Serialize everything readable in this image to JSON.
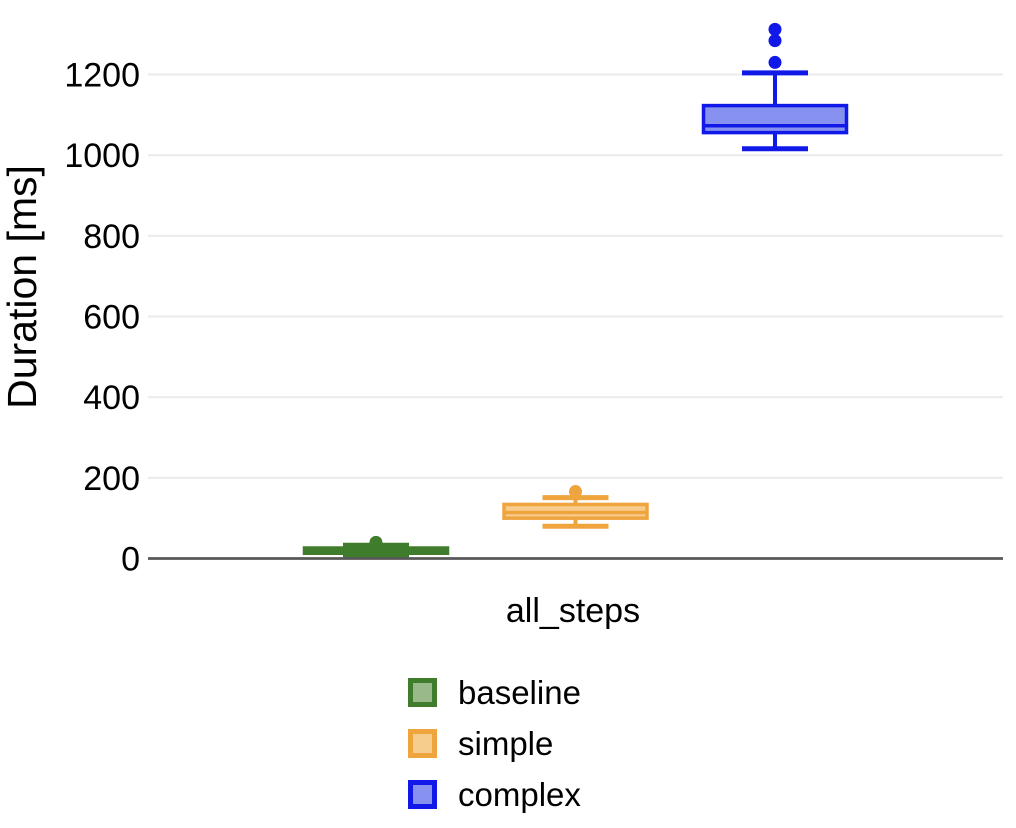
{
  "chart_data": {
    "type": "box",
    "title": "",
    "ylabel": "Duration [ms]",
    "xlabel": "",
    "categories": [
      "all_steps"
    ],
    "yticks": [
      0,
      200,
      400,
      600,
      800,
      1000,
      1200
    ],
    "ylim": [
      0,
      1360
    ],
    "grid": true,
    "legend_position": "bottom-center",
    "colors": {
      "grid_line": "#ececec",
      "axis_line": "#58585a",
      "text": "#000000",
      "background": "#ffffff"
    },
    "series": [
      {
        "name": "baseline",
        "color": "#3f7d2c",
        "fill": "#9ab98b",
        "whisker_low": 6,
        "q1": 13,
        "median": 18,
        "q3": 26,
        "whisker_high": 33,
        "outliers": [
          40
        ]
      },
      {
        "name": "simple",
        "color": "#f0a43e",
        "fill": "#f7cd8d",
        "whisker_low": 80,
        "q1": 100,
        "median": 114,
        "q3": 134,
        "whisker_high": 151,
        "outliers": [
          166
        ]
      },
      {
        "name": "complex",
        "color": "#1019e8",
        "fill": "#8791f0",
        "whisker_low": 1016,
        "q1": 1056,
        "median": 1073,
        "q3": 1123,
        "whisker_high": 1204,
        "outliers": [
          1230,
          1284,
          1312
        ]
      }
    ]
  }
}
